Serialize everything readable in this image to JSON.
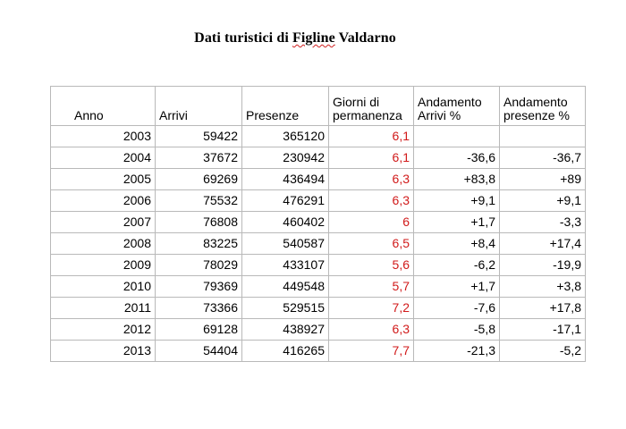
{
  "title": {
    "prefix": "Dati turistici di ",
    "underlined": "Figline",
    "suffix": " Valdarno"
  },
  "table": {
    "headers": [
      "Anno",
      "Arrivi",
      "Presenze",
      "Giorni di permanenza",
      "Andamento Arrivi %",
      "Andamento presenze %"
    ],
    "rows": [
      [
        "2003",
        "59422",
        "365120",
        "6,1",
        "",
        ""
      ],
      [
        "2004",
        "37672",
        "230942",
        "6,1",
        "-36,6",
        "-36,7"
      ],
      [
        "2005",
        "69269",
        "436494",
        "6,3",
        "+83,8",
        "+89"
      ],
      [
        "2006",
        "75532",
        "476291",
        "6,3",
        "+9,1",
        "+9,1"
      ],
      [
        "2007",
        "76808",
        "460402",
        "6",
        "+1,7",
        "-3,3"
      ],
      [
        "2008",
        "83225",
        "540587",
        "6,5",
        "+8,4",
        "+17,4"
      ],
      [
        "2009",
        "78029",
        "433107",
        "5,6",
        "-6,2",
        "-19,9"
      ],
      [
        "2010",
        "79369",
        "449548",
        "5,7",
        "+1,7",
        "+3,8"
      ],
      [
        "2011",
        "73366",
        "529515",
        "7,2",
        "-7,6",
        "+17,8"
      ],
      [
        "2012",
        "69128",
        "438927",
        "6,3",
        "-5,8",
        "-17,1"
      ],
      [
        "2013",
        "54404",
        "416265",
        "7,7",
        "-21,3",
        "-5,2"
      ]
    ]
  },
  "colors": {
    "permanenza_text": "#d11a1a",
    "grid_line": "#b9b9b9"
  }
}
